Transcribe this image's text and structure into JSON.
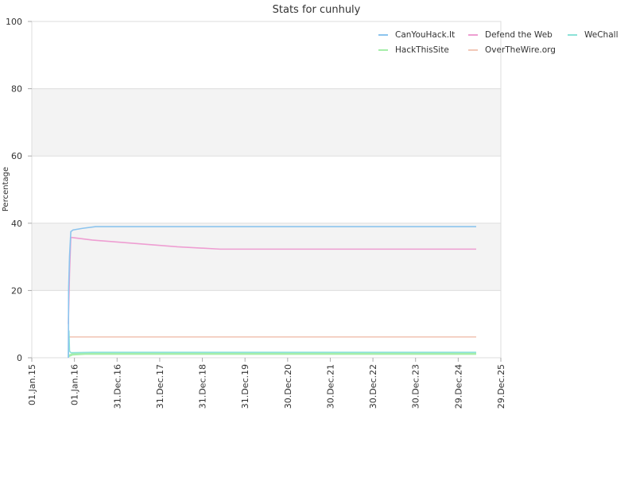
{
  "chart_data": {
    "type": "line",
    "title": "Stats for cunhuly",
    "xlabel": "",
    "ylabel": "Percentage",
    "ylim": [
      0,
      100
    ],
    "yticks": [
      0,
      20,
      40,
      60,
      80,
      100
    ],
    "xlim": [
      "2015-01-01",
      "2025-12-29"
    ],
    "xticks": [
      {
        "date": "2015-01-01",
        "label": "01.Jan.15"
      },
      {
        "date": "2016-01-01",
        "label": "01.Jan.16"
      },
      {
        "date": "2016-12-31",
        "label": "31.Dec.16"
      },
      {
        "date": "2017-12-31",
        "label": "31.Dec.17"
      },
      {
        "date": "2018-12-31",
        "label": "31.Dec.18"
      },
      {
        "date": "2019-12-31",
        "label": "31.Dec.19"
      },
      {
        "date": "2020-12-30",
        "label": "30.Dec.20"
      },
      {
        "date": "2021-12-30",
        "label": "30.Dec.21"
      },
      {
        "date": "2022-12-30",
        "label": "30.Dec.22"
      },
      {
        "date": "2023-12-30",
        "label": "30.Dec.23"
      },
      {
        "date": "2024-12-29",
        "label": "29.Dec.24"
      },
      {
        "date": "2025-12-29",
        "label": "29.Dec.25"
      }
    ],
    "bands": [
      [
        20,
        40
      ],
      [
        60,
        80
      ]
    ],
    "grid": true,
    "legend_position": "top-right",
    "series": [
      {
        "name": "CanYouHack.It",
        "color": "#8cc4ee",
        "points": [
          [
            "2015-11-10",
            0
          ],
          [
            "2015-11-12",
            20
          ],
          [
            "2015-11-20",
            30
          ],
          [
            "2015-12-01",
            37.5
          ],
          [
            "2015-12-20",
            38
          ],
          [
            "2016-03-15",
            38.5
          ],
          [
            "2016-07-01",
            39
          ],
          [
            "2025-06-01",
            39
          ]
        ]
      },
      {
        "name": "Defend the Web",
        "color": "#ee9ed2",
        "points": [
          [
            "2015-11-10",
            10
          ],
          [
            "2015-11-20",
            25
          ],
          [
            "2015-12-01",
            35.8
          ],
          [
            "2016-06-01",
            35
          ],
          [
            "2017-06-01",
            34
          ],
          [
            "2018-06-01",
            33
          ],
          [
            "2019-06-01",
            32.3
          ],
          [
            "2025-06-01",
            32.3
          ]
        ]
      },
      {
        "name": "WeChall",
        "color": "#8ce2d8",
        "points": [
          [
            "2015-11-10",
            0
          ],
          [
            "2015-11-15",
            8
          ],
          [
            "2015-11-20",
            2
          ],
          [
            "2015-12-01",
            1.5
          ],
          [
            "2016-06-01",
            1.6
          ],
          [
            "2025-06-01",
            1.6
          ]
        ]
      },
      {
        "name": "HackThisSite",
        "color": "#a6eeaa",
        "points": [
          [
            "2015-11-10",
            0.5
          ],
          [
            "2015-12-15",
            1
          ],
          [
            "2016-04-01",
            1.2
          ],
          [
            "2016-06-01",
            1.2
          ],
          [
            "2025-06-01",
            1.2
          ]
        ]
      },
      {
        "name": "OverTheWire.org",
        "color": "#f2c8b8",
        "points": [
          [
            "2015-11-10",
            6.2
          ],
          [
            "2025-06-01",
            6.2
          ]
        ]
      }
    ]
  }
}
